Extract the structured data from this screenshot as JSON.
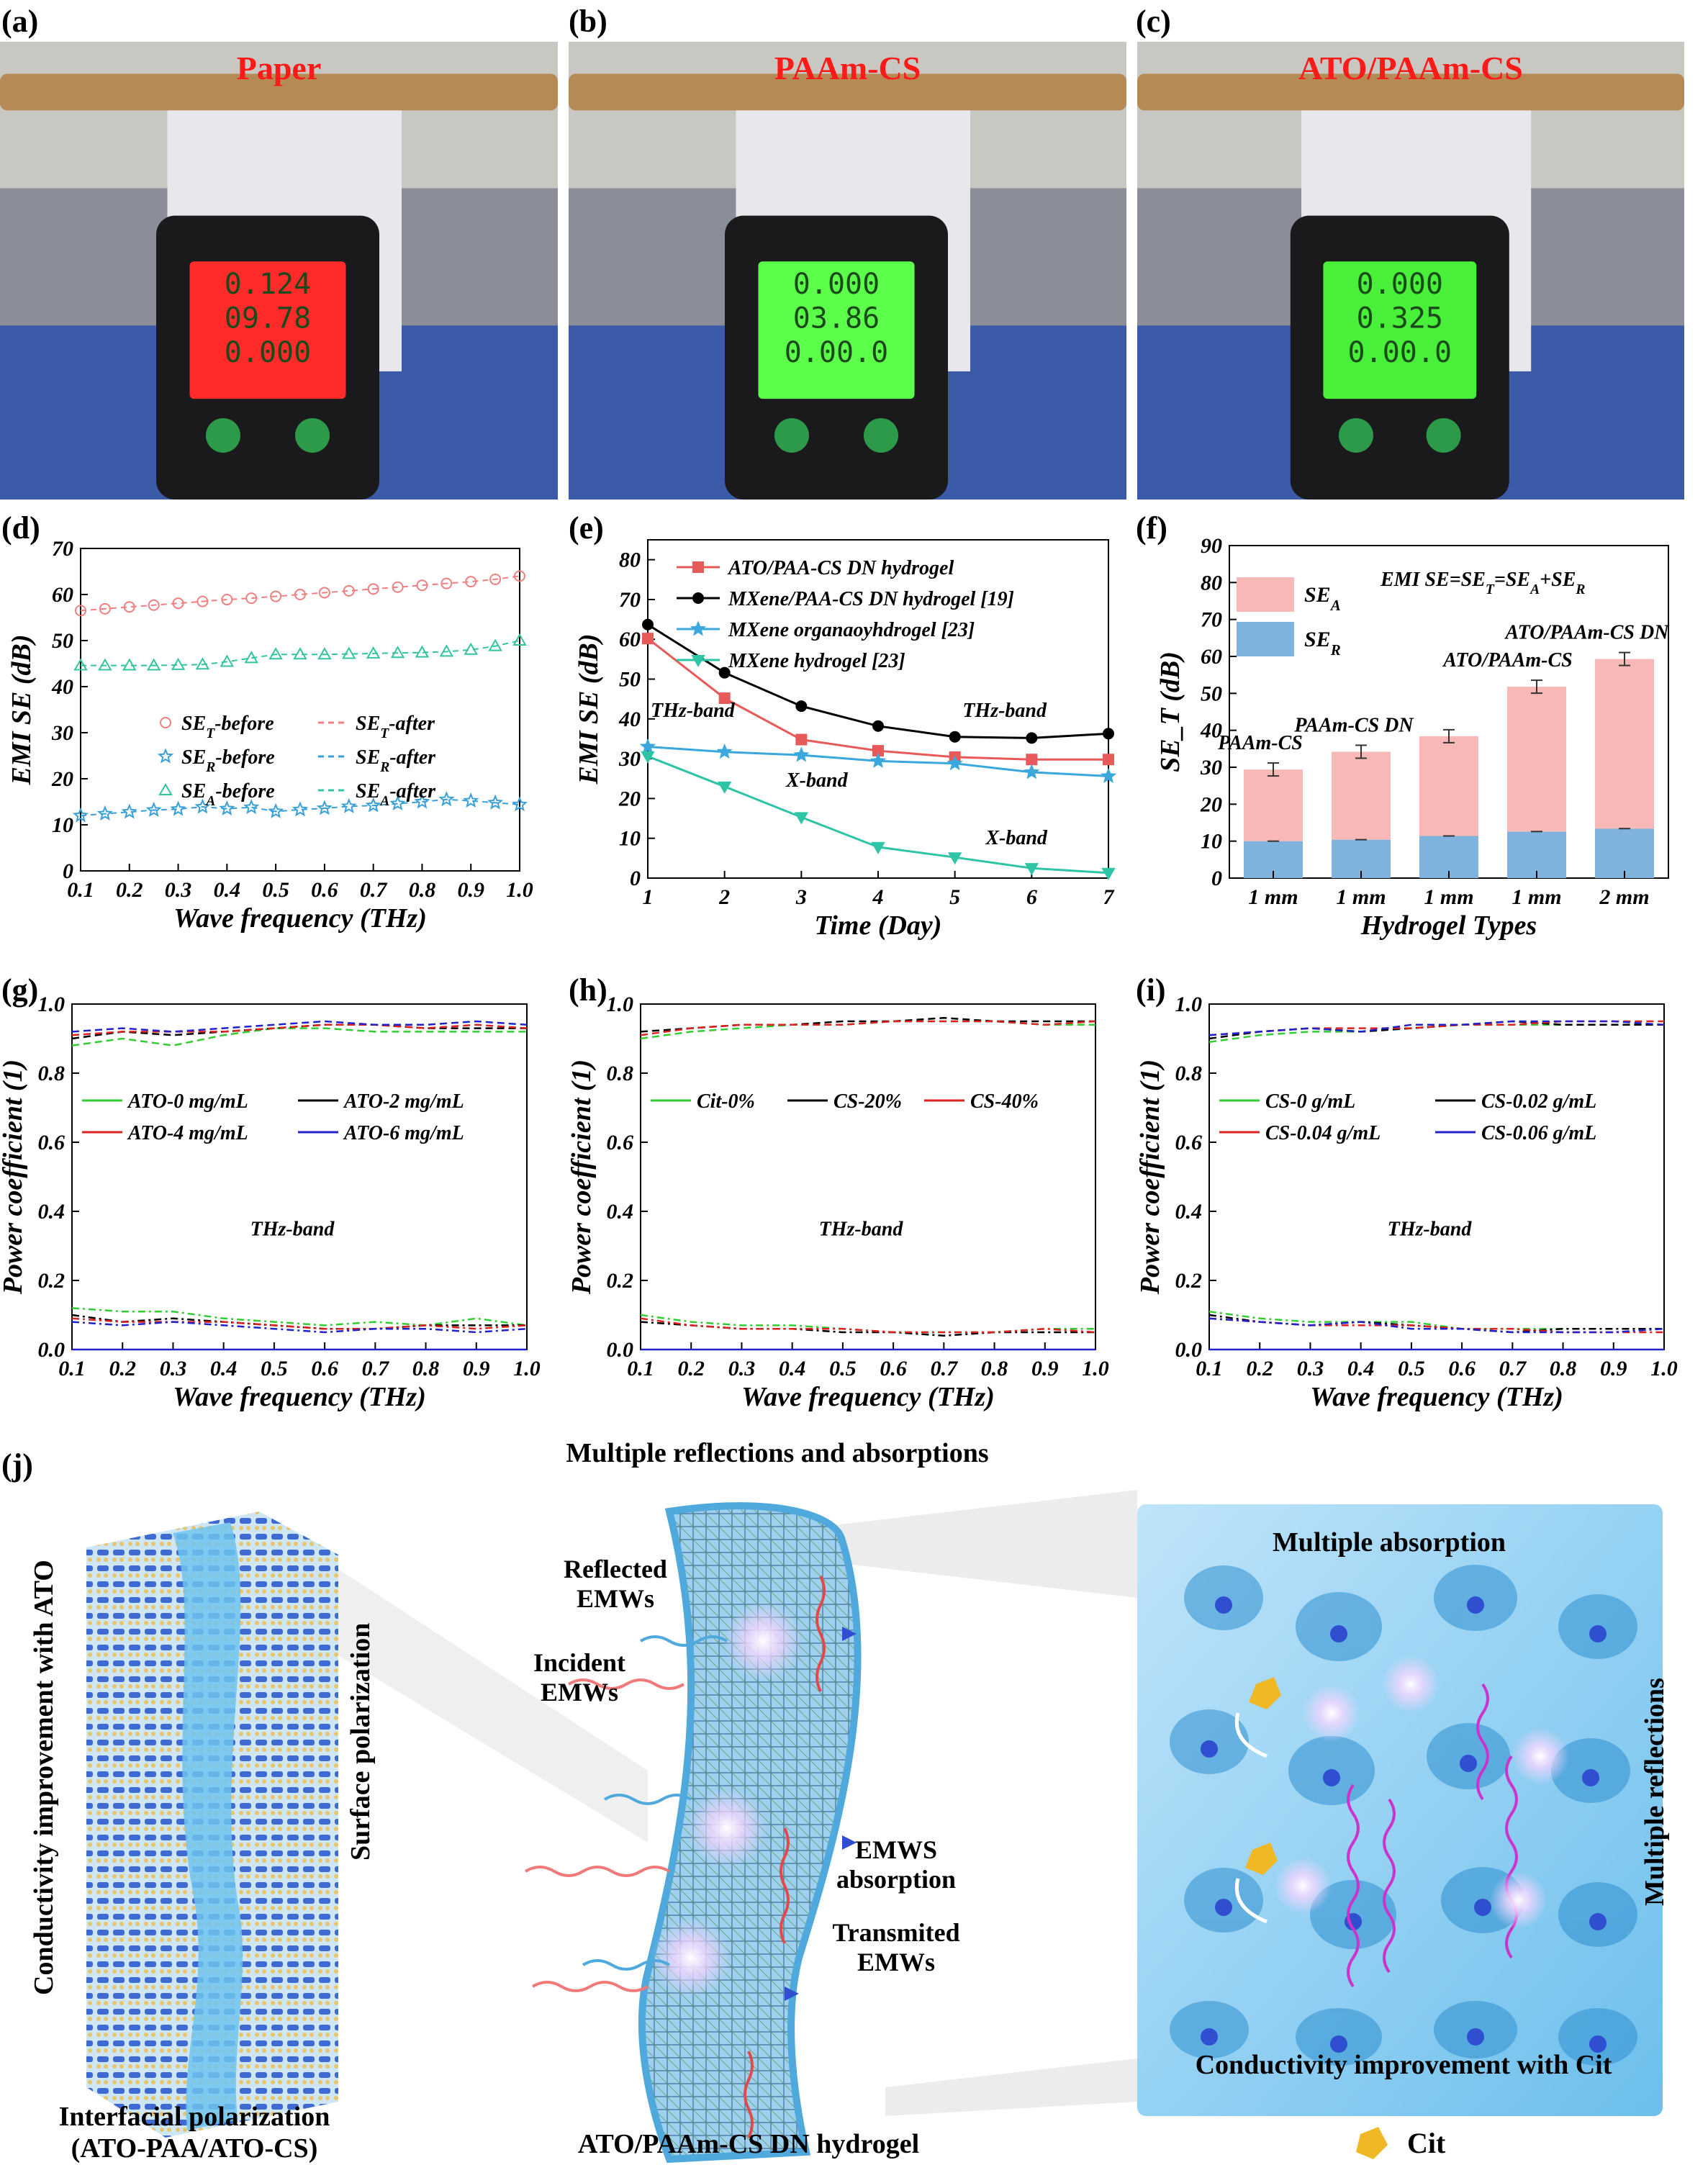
{
  "panels": {
    "a": {
      "label": "(a)",
      "title": "Paper",
      "screen_color": "#ff2a2a",
      "readings": [
        "0.124",
        "09.78",
        "0.000"
      ]
    },
    "b": {
      "label": "(b)",
      "title": "PAAm-CS",
      "screen_color": "#5cff4a",
      "readings": [
        "0.000",
        "03.86",
        "0.00.0"
      ]
    },
    "c": {
      "label": "(c)",
      "title": "ATO/PAAm-CS",
      "screen_color": "#49f03a",
      "readings": [
        "0.000",
        "0.325",
        "0.00.0"
      ]
    },
    "d": {
      "label": "(d)"
    },
    "e": {
      "label": "(e)"
    },
    "f": {
      "label": "(f)"
    },
    "g": {
      "label": "(g)"
    },
    "h": {
      "label": "(h)"
    },
    "i": {
      "label": "(i)"
    },
    "j": {
      "label": "(j)"
    }
  },
  "chart_data": [
    {
      "id": "d",
      "type": "line",
      "xlabel": "Wave frequency (THz)",
      "ylabel": "EMI SE (dB)",
      "xlim": [
        0.1,
        1.0
      ],
      "ylim": [
        0,
        70
      ],
      "xticks": [
        "0.1",
        "0.2",
        "0.3",
        "0.4",
        "0.5",
        "0.6",
        "0.7",
        "0.8",
        "0.9",
        "1.0"
      ],
      "yticks": [
        "0",
        "10",
        "20",
        "30",
        "40",
        "50",
        "60",
        "70"
      ],
      "x": [
        0.1,
        0.15,
        0.2,
        0.25,
        0.3,
        0.35,
        0.4,
        0.45,
        0.5,
        0.55,
        0.6,
        0.65,
        0.7,
        0.75,
        0.8,
        0.85,
        0.9,
        0.95,
        1.0
      ],
      "legend": [
        {
          "marker": "SE_T-before",
          "line": "SE_T-after",
          "color": "#f08080"
        },
        {
          "marker": "SE_R-before",
          "line": "SE_R-after",
          "color": "#3aa0d8"
        },
        {
          "marker": "SE_A-before",
          "line": "SE_A-after",
          "color": "#33c4a0"
        }
      ],
      "series": [
        {
          "name": "SE_T",
          "color": "#f08080",
          "marker": "circle",
          "values": [
            56.5,
            56.9,
            57.3,
            57.7,
            58.1,
            58.5,
            58.9,
            59.2,
            59.6,
            60.0,
            60.4,
            60.8,
            61.2,
            61.6,
            62.0,
            62.4,
            62.8,
            63.3,
            64.0
          ]
        },
        {
          "name": "SE_R",
          "color": "#3aa0d8",
          "marker": "star",
          "values": [
            12.0,
            12.4,
            12.8,
            13.2,
            13.4,
            13.9,
            13.5,
            13.8,
            12.9,
            13.3,
            13.6,
            14.0,
            14.2,
            14.6,
            15.0,
            15.5,
            15.2,
            14.8,
            14.4
          ]
        },
        {
          "name": "SE_A",
          "color": "#33c4a0",
          "marker": "triangle",
          "values": [
            44.6,
            44.6,
            44.6,
            44.6,
            44.7,
            44.8,
            45.4,
            46.2,
            47.0,
            47.0,
            47.0,
            47.1,
            47.2,
            47.3,
            47.4,
            47.6,
            48.0,
            48.8,
            50.0
          ]
        }
      ]
    },
    {
      "id": "e",
      "type": "line",
      "xlabel": "Time (Day)",
      "ylabel": "EMI SE (dB)",
      "xlim": [
        1,
        7
      ],
      "ylim": [
        0,
        85
      ],
      "xticks": [
        "1",
        "2",
        "3",
        "4",
        "5",
        "6",
        "7"
      ],
      "yticks": [
        "0",
        "10",
        "20",
        "30",
        "40",
        "50",
        "60",
        "70",
        "80"
      ],
      "x": [
        1,
        2,
        3,
        4,
        5,
        6,
        7
      ],
      "series": [
        {
          "name": "ATO/PAA-CS DN hydrogel",
          "color": "#e85a5a",
          "marker": "square",
          "values": [
            60.2,
            45.2,
            34.8,
            32.0,
            30.4,
            29.8,
            29.8
          ]
        },
        {
          "name": "MXene/PAA-CS DN hydrogel [19]",
          "color": "#000000",
          "marker": "circle",
          "values": [
            63.7,
            51.6,
            43.2,
            38.2,
            35.5,
            35.2,
            36.3
          ]
        },
        {
          "name": "MXene organaoyhdrogel [23]",
          "color": "#3aa8dc",
          "marker": "star",
          "values": [
            33.0,
            31.7,
            30.9,
            29.4,
            28.8,
            26.6,
            25.6
          ]
        },
        {
          "name": "MXene hydrogel [23]",
          "color": "#2ec4a6",
          "marker": "triangle-down",
          "values": [
            30.6,
            23.0,
            15.3,
            7.8,
            5.2,
            2.5,
            1.3
          ]
        }
      ],
      "annotations": [
        "THz-band",
        "THz-band",
        "X-band",
        "X-band"
      ]
    },
    {
      "id": "f",
      "type": "bar",
      "xlabel": "Hydrogel Types",
      "ylabel": "SE_T (dB)",
      "ylim": [
        0,
        90
      ],
      "yticks": [
        "0",
        "10",
        "20",
        "30",
        "40",
        "50",
        "60",
        "70",
        "80",
        "90"
      ],
      "categories": [
        "1 mm",
        "1 mm",
        "1 mm",
        "1 mm",
        "2 mm"
      ],
      "stacked": true,
      "series": [
        {
          "name": "SE_R",
          "color": "#7fb2dc",
          "values": [
            10.0,
            10.4,
            11.4,
            12.6,
            13.4
          ]
        },
        {
          "name": "SE_A",
          "color": "#f9b8b8",
          "values": [
            19.4,
            23.8,
            27.0,
            39.2,
            45.9
          ]
        }
      ],
      "totals": [
        29.4,
        34.2,
        38.4,
        51.8,
        59.3
      ],
      "equation": "EMI SE=SE_T=SE_A+SE_R",
      "bar_labels": [
        "PAAm-CS",
        "PAAm-CS DN",
        "",
        "ATO/PAAm-CS",
        "ATO/PAAm-CS DN"
      ]
    },
    {
      "id": "g",
      "type": "line",
      "xlabel": "Wave frequency (THz)",
      "ylabel": "Power coefficient (1)",
      "xlim": [
        0.1,
        1.0
      ],
      "ylim": [
        0,
        1.0
      ],
      "xticks": [
        "0.1",
        "0.2",
        "0.3",
        "0.4",
        "0.5",
        "0.6",
        "0.7",
        "0.8",
        "0.9",
        "1.0"
      ],
      "yticks": [
        "0.0",
        "0.2",
        "0.4",
        "0.6",
        "0.8",
        "1.0"
      ],
      "annotation": "THz-band",
      "legend": [
        "ATO-0 mg/mL",
        "ATO-2 mg/mL",
        "ATO-4 mg/mL",
        "ATO-6 mg/mL"
      ],
      "x": [
        0.1,
        0.2,
        0.3,
        0.4,
        0.5,
        0.6,
        0.7,
        0.8,
        0.9,
        1.0
      ],
      "series": [
        {
          "name": "ATO-0 mg/mL",
          "color": "#33cc33",
          "values_high": [
            0.88,
            0.9,
            0.88,
            0.91,
            0.93,
            0.93,
            0.92,
            0.92,
            0.92,
            0.92
          ],
          "values_low": [
            0.12,
            0.11,
            0.11,
            0.09,
            0.08,
            0.07,
            0.08,
            0.07,
            0.09,
            0.07
          ]
        },
        {
          "name": "ATO-2 mg/mL",
          "color": "#000000",
          "values_high": [
            0.9,
            0.92,
            0.91,
            0.92,
            0.93,
            0.94,
            0.94,
            0.93,
            0.93,
            0.93
          ],
          "values_low": [
            0.1,
            0.08,
            0.09,
            0.08,
            0.07,
            0.06,
            0.06,
            0.07,
            0.07,
            0.07
          ]
        },
        {
          "name": "ATO-4 mg/mL",
          "color": "#dd2222",
          "values_high": [
            0.91,
            0.92,
            0.92,
            0.92,
            0.93,
            0.94,
            0.94,
            0.93,
            0.94,
            0.93
          ],
          "values_low": [
            0.09,
            0.08,
            0.08,
            0.08,
            0.07,
            0.06,
            0.06,
            0.07,
            0.06,
            0.07
          ]
        },
        {
          "name": "ATO-6 mg/mL",
          "color": "#2222cc",
          "values_high": [
            0.92,
            0.93,
            0.92,
            0.93,
            0.94,
            0.95,
            0.94,
            0.94,
            0.95,
            0.94
          ],
          "values_low": [
            0.08,
            0.07,
            0.08,
            0.07,
            0.06,
            0.05,
            0.06,
            0.06,
            0.05,
            0.06
          ]
        }
      ],
      "flat_line": 0.0
    },
    {
      "id": "h",
      "type": "line",
      "xlabel": "Wave frequency (THz)",
      "ylabel": "Power coefficient (1)",
      "xlim": [
        0.1,
        1.0
      ],
      "ylim": [
        0,
        1.0
      ],
      "xticks": [
        "0.1",
        "0.2",
        "0.3",
        "0.4",
        "0.5",
        "0.6",
        "0.7",
        "0.8",
        "0.9",
        "1.0"
      ],
      "yticks": [
        "0.0",
        "0.2",
        "0.4",
        "0.6",
        "0.8",
        "1.0"
      ],
      "annotation": "THz-band",
      "legend": [
        "Cit-0%",
        "CS-20%",
        "CS-40%"
      ],
      "x": [
        0.1,
        0.2,
        0.3,
        0.4,
        0.5,
        0.6,
        0.7,
        0.8,
        0.9,
        1.0
      ],
      "series": [
        {
          "name": "Cit-0%",
          "color": "#33cc33",
          "values_high": [
            0.9,
            0.92,
            0.93,
            0.94,
            0.94,
            0.95,
            0.95,
            0.95,
            0.94,
            0.94
          ],
          "values_low": [
            0.1,
            0.08,
            0.07,
            0.07,
            0.06,
            0.05,
            0.05,
            0.05,
            0.06,
            0.06
          ]
        },
        {
          "name": "CS-20%",
          "color": "#000000",
          "values_high": [
            0.92,
            0.93,
            0.94,
            0.94,
            0.95,
            0.95,
            0.96,
            0.95,
            0.95,
            0.95
          ],
          "values_low": [
            0.08,
            0.07,
            0.06,
            0.06,
            0.05,
            0.05,
            0.04,
            0.05,
            0.05,
            0.05
          ]
        },
        {
          "name": "CS-40%",
          "color": "#dd2222",
          "values_high": [
            0.91,
            0.93,
            0.94,
            0.94,
            0.94,
            0.95,
            0.95,
            0.95,
            0.94,
            0.95
          ],
          "values_low": [
            0.09,
            0.07,
            0.06,
            0.06,
            0.06,
            0.05,
            0.05,
            0.05,
            0.06,
            0.05
          ]
        }
      ],
      "flat_line": 0.0
    },
    {
      "id": "i",
      "type": "line",
      "xlabel": "Wave frequency (THz)",
      "ylabel": "Power coefficient (1)",
      "xlim": [
        0.1,
        1.0
      ],
      "ylim": [
        0,
        1.0
      ],
      "xticks": [
        "0.1",
        "0.2",
        "0.3",
        "0.4",
        "0.5",
        "0.6",
        "0.7",
        "0.8",
        "0.9",
        "1.0"
      ],
      "yticks": [
        "0.0",
        "0.2",
        "0.4",
        "0.6",
        "0.8",
        "1.0"
      ],
      "annotation": "THz-band",
      "legend": [
        "CS-0 g/mL",
        "CS-0.02 g/mL",
        "CS-0.04 g/mL",
        "CS-0.06 g/mL"
      ],
      "x": [
        0.1,
        0.2,
        0.3,
        0.4,
        0.5,
        0.6,
        0.7,
        0.8,
        0.9,
        1.0
      ],
      "series": [
        {
          "name": "CS-0 g/mL",
          "color": "#33cc33",
          "values_high": [
            0.89,
            0.91,
            0.92,
            0.92,
            0.93,
            0.94,
            0.94,
            0.94,
            0.94,
            0.94
          ],
          "values_low": [
            0.11,
            0.09,
            0.08,
            0.08,
            0.08,
            0.06,
            0.06,
            0.06,
            0.06,
            0.06
          ]
        },
        {
          "name": "CS-0.02 g/mL",
          "color": "#000000",
          "values_high": [
            0.9,
            0.92,
            0.93,
            0.92,
            0.93,
            0.94,
            0.95,
            0.94,
            0.94,
            0.94
          ],
          "values_low": [
            0.1,
            0.08,
            0.07,
            0.08,
            0.07,
            0.06,
            0.05,
            0.06,
            0.06,
            0.06
          ]
        },
        {
          "name": "CS-0.04 g/mL",
          "color": "#dd2222",
          "values_high": [
            0.91,
            0.92,
            0.93,
            0.93,
            0.93,
            0.94,
            0.94,
            0.95,
            0.95,
            0.95
          ],
          "values_low": [
            0.09,
            0.08,
            0.07,
            0.07,
            0.07,
            0.06,
            0.06,
            0.05,
            0.05,
            0.05
          ]
        },
        {
          "name": "CS-0.06 g/mL",
          "color": "#2222cc",
          "values_high": [
            0.91,
            0.92,
            0.93,
            0.92,
            0.94,
            0.94,
            0.95,
            0.95,
            0.95,
            0.94
          ],
          "values_low": [
            0.09,
            0.08,
            0.07,
            0.08,
            0.06,
            0.06,
            0.05,
            0.05,
            0.05,
            0.06
          ]
        }
      ],
      "flat_line": 0.0
    }
  ],
  "schematic": {
    "top_title": "Multiple reflections and absorptions",
    "left_vertical": "Conductivity improvement with ATO",
    "surface_polarization": "Surface polarization",
    "interfacial_line1": "Interfacial polarization",
    "interfacial_line2": "(ATO-PAA/ATO-CS)",
    "reflected": "Reflected EMWs",
    "incident": "Incident EMWs",
    "emws_absorption": "EMWS absorption",
    "transmitted": "Transmited EMWs",
    "hydrogel_caption": "ATO/PAAm-CS DN hydrogel",
    "multiple_absorption": "Multiple absorption",
    "multiple_reflections": "Multiple reflections",
    "conductivity_cit": "Conductivity improvement with Cit",
    "cit_legend": "Cit"
  }
}
